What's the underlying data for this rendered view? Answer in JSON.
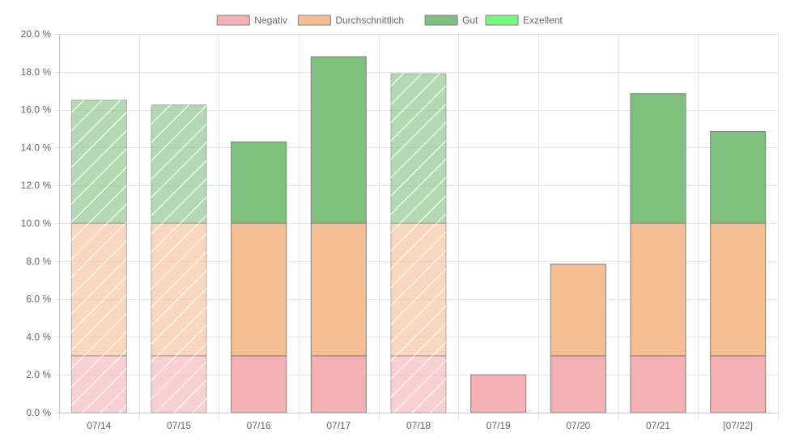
{
  "chart_data": {
    "type": "bar",
    "stacked": true,
    "categories": [
      "07/14",
      "07/15",
      "07/16",
      "07/17",
      "07/18",
      "07/19",
      "07/20",
      "07/21",
      "[07/22]"
    ],
    "series": [
      {
        "name": "Negativ",
        "color": "#f4b0b2",
        "values": [
          3.0,
          3.0,
          3.0,
          3.0,
          3.0,
          2.0,
          3.0,
          3.0,
          3.0
        ]
      },
      {
        "name": "Durchschnittlich",
        "color": "#f5bd92",
        "values": [
          7.0,
          7.0,
          7.0,
          7.0,
          7.0,
          0.0,
          4.85,
          7.0,
          7.0
        ]
      },
      {
        "name": "Gut",
        "color": "#7fc07f",
        "values": [
          6.5,
          6.25,
          4.3,
          8.8,
          7.9,
          0.0,
          0.0,
          6.85,
          4.85
        ]
      },
      {
        "name": "Exzellent",
        "color": "#77f77d",
        "values": [
          0,
          0,
          0,
          0,
          0,
          0,
          0,
          0,
          0
        ]
      }
    ],
    "hatched_categories": [
      "07/14",
      "07/15",
      "07/18"
    ],
    "ylim": [
      0,
      20
    ],
    "y_ticks": [
      "0.0 %",
      "2.0 %",
      "4.0 %",
      "6.0 %",
      "8.0 %",
      "10.0 %",
      "12.0 %",
      "14.0 %",
      "16.0 %",
      "18.0 %",
      "20.0 %"
    ],
    "title": "",
    "xlabel": "",
    "ylabel": "",
    "grid": true,
    "legend_position": "top"
  }
}
